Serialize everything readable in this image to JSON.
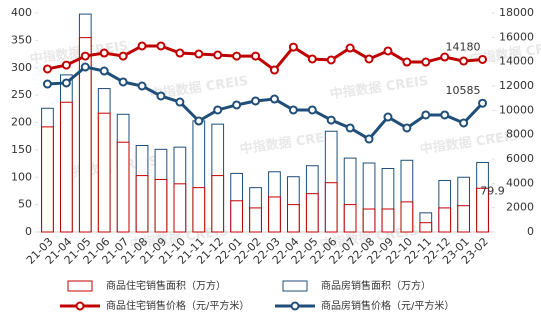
{
  "chart_data": {
    "type": "bar_line",
    "watermark": "中指数据 CREIS",
    "categories": [
      "21-03",
      "21-04",
      "21-05",
      "21-06",
      "21-07",
      "21-08",
      "21-09",
      "21-10",
      "21-11",
      "21-12",
      "22-01",
      "22-02",
      "22-03",
      "22-04",
      "22-05",
      "22-06",
      "22-07",
      "22-08",
      "22-09",
      "22-10",
      "22-11",
      "22-12",
      "23-01",
      "23-02"
    ],
    "ylim": [
      0,
      400
    ],
    "yticks": [
      0,
      50,
      100,
      150,
      200,
      250,
      300,
      350,
      400
    ],
    "y2lim": [
      0,
      18000
    ],
    "y2ticks": [
      0,
      2000,
      4000,
      6000,
      8000,
      10000,
      12000,
      14000,
      16000,
      18000
    ],
    "series": [
      {
        "name": "商品房销售面积（万方）",
        "type": "bar",
        "color": "#1f4e79",
        "values": [
          226,
          287,
          398,
          262,
          215,
          158,
          151,
          155,
          203,
          197,
          107,
          81,
          110,
          101,
          121,
          184,
          135,
          126,
          116,
          131,
          35,
          94,
          100,
          127
        ]
      },
      {
        "name": "商品住宅销售面积（万方）",
        "type": "bar",
        "color": "#c00000",
        "label_last": true,
        "values": [
          192,
          237,
          355,
          217,
          164,
          103,
          96,
          88,
          81,
          103,
          57,
          44,
          64,
          50,
          70,
          90,
          50,
          42,
          42,
          55,
          17,
          44,
          48,
          79.9
        ]
      },
      {
        "name": "商品住宅销售价格（元/平方米）",
        "type": "line",
        "axis": "y2",
        "color": "#c00000",
        "label_last": true,
        "values": [
          13400,
          13720,
          14460,
          14710,
          14460,
          15290,
          15290,
          14710,
          14630,
          14550,
          14460,
          14460,
          13310,
          15200,
          14220,
          14140,
          15120,
          14220,
          14880,
          13970,
          13970,
          14380,
          14050,
          14180
        ]
      },
      {
        "name": "商品房销售价格（元/平方米）",
        "type": "line",
        "axis": "y2",
        "color": "#1f4e79",
        "label_last": true,
        "values": [
          12160,
          12250,
          13560,
          13230,
          12330,
          12000,
          11180,
          10680,
          9120,
          10030,
          10440,
          10770,
          10930,
          10030,
          10030,
          9200,
          8550,
          7640,
          9450,
          8550,
          9620,
          9620,
          8960,
          10585
        ]
      }
    ]
  }
}
